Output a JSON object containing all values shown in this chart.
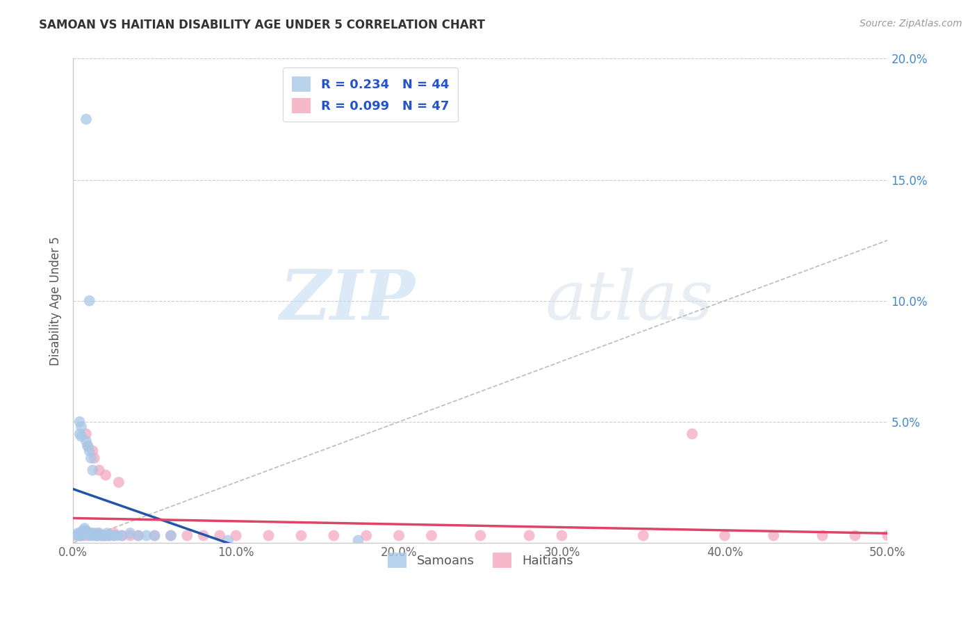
{
  "title": "SAMOAN VS HAITIAN DISABILITY AGE UNDER 5 CORRELATION CHART",
  "source": "Source: ZipAtlas.com",
  "ylabel": "Disability Age Under 5",
  "xlim": [
    0.0,
    0.5
  ],
  "ylim": [
    0.0,
    0.2
  ],
  "xticks": [
    0.0,
    0.1,
    0.2,
    0.3,
    0.4,
    0.5
  ],
  "xticklabels": [
    "0.0%",
    "10.0%",
    "20.0%",
    "30.0%",
    "40.0%",
    "50.0%"
  ],
  "yticks": [
    0.0,
    0.05,
    0.1,
    0.15,
    0.2
  ],
  "yticklabels_right": [
    "",
    "5.0%",
    "10.0%",
    "15.0%",
    "20.0%"
  ],
  "samoan_R": 0.234,
  "samoan_N": 44,
  "haitian_R": 0.099,
  "haitian_N": 47,
  "samoan_color": "#a8c8e8",
  "haitian_color": "#f4a8be",
  "samoan_line_color": "#2255aa",
  "haitian_line_color": "#dd4466",
  "dashed_line_color": "#bbbbbb",
  "watermark_zip": "ZIP",
  "watermark_atlas": "atlas",
  "samoan_x": [
    0.008,
    0.175,
    0.01,
    0.095,
    0.004,
    0.004,
    0.005,
    0.005,
    0.006,
    0.006,
    0.007,
    0.007,
    0.008,
    0.008,
    0.009,
    0.009,
    0.01,
    0.01,
    0.011,
    0.011,
    0.012,
    0.012,
    0.013,
    0.014,
    0.015,
    0.016,
    0.017,
    0.018,
    0.019,
    0.02,
    0.021,
    0.022,
    0.025,
    0.027,
    0.03,
    0.035,
    0.04,
    0.045,
    0.05,
    0.06,
    0.002,
    0.003,
    0.004,
    0.005
  ],
  "samoan_y": [
    0.175,
    0.001,
    0.1,
    0.001,
    0.05,
    0.045,
    0.048,
    0.044,
    0.005,
    0.004,
    0.005,
    0.006,
    0.042,
    0.005,
    0.04,
    0.004,
    0.003,
    0.038,
    0.035,
    0.004,
    0.003,
    0.03,
    0.004,
    0.003,
    0.003,
    0.004,
    0.003,
    0.003,
    0.003,
    0.003,
    0.004,
    0.003,
    0.003,
    0.003,
    0.003,
    0.004,
    0.003,
    0.003,
    0.003,
    0.003,
    0.003,
    0.004,
    0.003,
    0.003
  ],
  "haitian_x": [
    0.003,
    0.004,
    0.005,
    0.006,
    0.007,
    0.008,
    0.009,
    0.01,
    0.011,
    0.012,
    0.013,
    0.014,
    0.015,
    0.016,
    0.018,
    0.02,
    0.022,
    0.025,
    0.028,
    0.03,
    0.035,
    0.04,
    0.05,
    0.06,
    0.07,
    0.08,
    0.09,
    0.1,
    0.12,
    0.14,
    0.16,
    0.18,
    0.2,
    0.22,
    0.25,
    0.28,
    0.3,
    0.35,
    0.4,
    0.43,
    0.46,
    0.48,
    0.5,
    0.015,
    0.02,
    0.025,
    0.38
  ],
  "haitian_y": [
    0.003,
    0.004,
    0.003,
    0.004,
    0.003,
    0.045,
    0.04,
    0.003,
    0.004,
    0.038,
    0.035,
    0.003,
    0.004,
    0.03,
    0.003,
    0.028,
    0.003,
    0.004,
    0.025,
    0.003,
    0.003,
    0.003,
    0.003,
    0.003,
    0.003,
    0.003,
    0.003,
    0.003,
    0.003,
    0.003,
    0.003,
    0.003,
    0.003,
    0.003,
    0.003,
    0.003,
    0.003,
    0.003,
    0.003,
    0.003,
    0.003,
    0.003,
    0.003,
    0.003,
    0.003,
    0.003,
    0.045
  ]
}
